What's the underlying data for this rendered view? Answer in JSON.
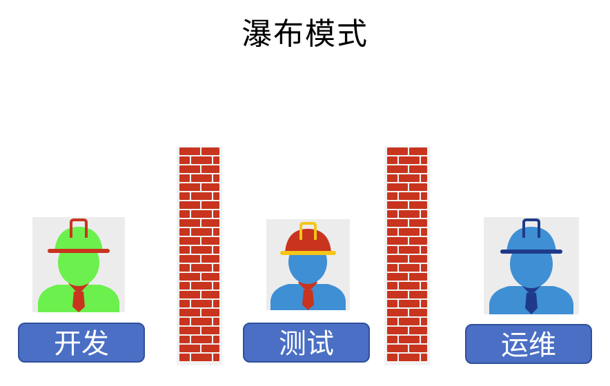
{
  "title": "瀑布模式",
  "stages": [
    {
      "label": "开发",
      "icon": "developer-worker-icon",
      "face_color": "#6cf04d",
      "helmet_color": "#6cf04d",
      "helmet_trim": "#c8341e"
    },
    {
      "label": "测试",
      "icon": "tester-worker-icon",
      "face_color": "#3f8fd4",
      "helmet_color": "#c8341e",
      "helmet_trim": "#f5c518"
    },
    {
      "label": "运维",
      "icon": "ops-worker-icon",
      "face_color": "#3f8fd4",
      "helmet_color": "#3f8fd4",
      "helmet_trim": "#1f3a8a"
    }
  ],
  "walls": [
    {
      "icon": "brick-wall-icon",
      "color": "#c8341e"
    },
    {
      "icon": "brick-wall-icon",
      "color": "#c8341e"
    }
  ]
}
